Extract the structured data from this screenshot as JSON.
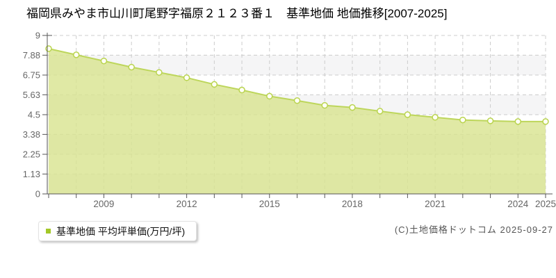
{
  "title": "福岡県みやま市山川町尾野字福原２１２３番１　基準地価 地価推移[2007-2025]",
  "legend": {
    "label": "基準地価 平均坪単価(万円/坪)",
    "marker_color": "#a3c828"
  },
  "footer": {
    "copyright": "(C)土地価格ドットコム 2025-09-27"
  },
  "chart_data": {
    "type": "area",
    "title": "福岡県みやま市山川町尾野字福原２１２３番１ 基準地価 地価推移[2007-2025]",
    "series_name": "基準地価 平均坪単価(万円/坪)",
    "x": [
      2007,
      2008,
      2009,
      2010,
      2011,
      2012,
      2013,
      2014,
      2015,
      2016,
      2017,
      2018,
      2019,
      2020,
      2021,
      2022,
      2023,
      2024,
      2025
    ],
    "values": [
      8.25,
      7.9,
      7.55,
      7.2,
      6.9,
      6.6,
      6.22,
      5.9,
      5.55,
      5.3,
      5.03,
      4.91,
      4.7,
      4.5,
      4.35,
      4.2,
      4.15,
      4.11,
      4.11
    ],
    "xlabel": "",
    "ylabel": "",
    "ylim": [
      0,
      9
    ],
    "yticks": [
      0,
      1.13,
      2.25,
      3.38,
      4.5,
      5.63,
      6.75,
      7.88,
      9
    ],
    "ytick_labels": [
      "0",
      "1.13",
      "2.25",
      "3.38",
      "4.5",
      "5.63",
      "6.75",
      "7.88",
      "9"
    ],
    "xticks_labeled": [
      "2009",
      "2012",
      "2015",
      "2018",
      "2021",
      "2024",
      "2025"
    ],
    "grid": "dashed",
    "legend_position": "bottom-left",
    "marker": "circle",
    "colors": {
      "area_fill": "#d8e48f",
      "area_fill_opacity": 0.8,
      "line": "#bdd65b",
      "marker_fill": "#fffef5",
      "marker_stroke": "#b9d44e",
      "grid": "#cccccc",
      "axis": "#555555",
      "band_alt": "#f5f5f6",
      "tick_label": "#666666"
    }
  }
}
